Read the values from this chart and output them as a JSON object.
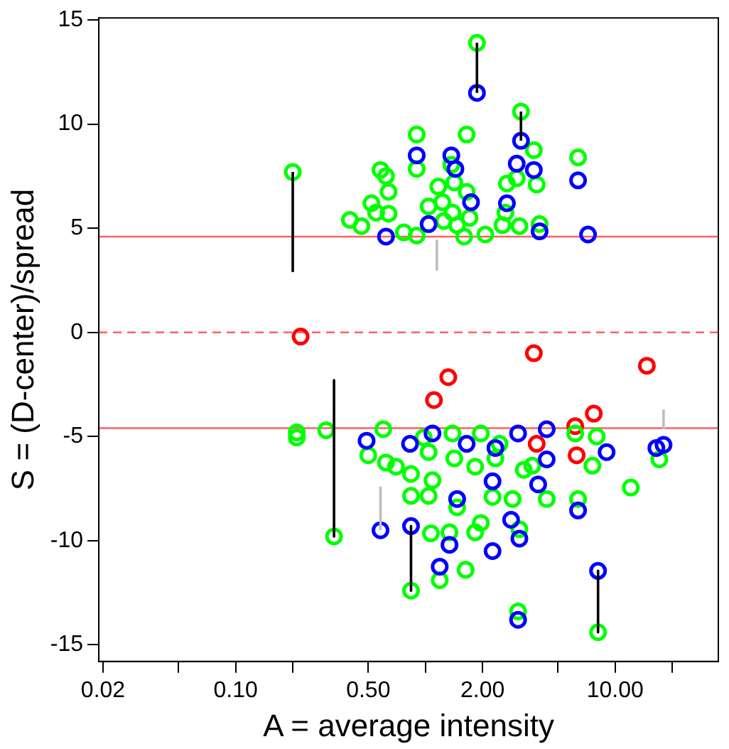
{
  "chart_data": {
    "type": "scatter",
    "xlabel": "A = average intensity",
    "ylabel": "S = (D-center)/spread",
    "log": "x",
    "marker": "circle",
    "grid": false,
    "xlim": [
      0.019,
      35
    ],
    "ylim": [
      -15.8,
      15.1
    ],
    "xticks": [
      {
        "value": 0.02,
        "label": "0.02"
      },
      {
        "value": 0.05,
        "label": null
      },
      {
        "value": 0.1,
        "label": "0.10"
      },
      {
        "value": 0.2,
        "label": null
      },
      {
        "value": 0.5,
        "label": "0.50"
      },
      {
        "value": 1,
        "label": null
      },
      {
        "value": 2,
        "label": "2.00"
      },
      {
        "value": 5,
        "label": null
      },
      {
        "value": 10,
        "label": "10.00"
      },
      {
        "value": 20,
        "label": null
      }
    ],
    "yticks": [
      -15,
      -10,
      -5,
      0,
      5,
      10,
      15
    ],
    "ref_lines": [
      {
        "axis": "y",
        "value": 4.6,
        "color": "#ff6060",
        "line_style": "solid"
      },
      {
        "axis": "y",
        "value": 0,
        "color": "#ff6060",
        "line_style": "dashed"
      },
      {
        "axis": "y",
        "value": -4.6,
        "color": "#ff6060",
        "line_style": "solid"
      }
    ],
    "series": [
      {
        "type": "line",
        "marker": "none",
        "color": "#000000",
        "x": [
          0.2,
          0.2
        ],
        "values": [
          2.9,
          7.7
        ]
      },
      {
        "type": "line",
        "marker": "none",
        "color": "#000000",
        "x": [
          1.87,
          1.87
        ],
        "values": [
          11.5,
          13.9
        ]
      },
      {
        "type": "line",
        "marker": "none",
        "color": "#000000",
        "x": [
          0.33,
          0.33
        ],
        "values": [
          -2.3,
          -9.8
        ]
      },
      {
        "type": "line",
        "marker": "none",
        "color": "#000000",
        "x": [
          0.84,
          0.84
        ],
        "values": [
          -9.3,
          -12.4
        ]
      },
      {
        "type": "line",
        "marker": "none",
        "color": "#000000",
        "x": [
          8.13,
          8.13
        ],
        "values": [
          -11.45,
          -14.4
        ]
      },
      {
        "type": "line",
        "marker": "none",
        "color": "#000000",
        "x": [
          3.19,
          3.19
        ],
        "values": [
          9.2,
          10.6
        ]
      },
      {
        "type": "line",
        "marker": "none",
        "color": "#bebebe",
        "x": [
          1.15,
          1.15
        ],
        "values": [
          4.4,
          3.0
        ]
      },
      {
        "type": "line",
        "marker": "none",
        "color": "#bebebe",
        "x": [
          0.58,
          0.58
        ],
        "values": [
          -9.5,
          -7.4
        ]
      },
      {
        "type": "line",
        "marker": "none",
        "color": "#bebebe",
        "x": [
          18.0,
          18.0
        ],
        "values": [
          -4.65,
          -3.7
        ]
      },
      {
        "color": "#0000ff",
        "x": [
          1.87,
          3.19,
          3.03,
          3.73,
          0.9,
          1.37,
          1.44,
          6.38,
          7.2,
          2.69,
          0.62,
          1.04,
          1.74,
          4.0,
          0.49,
          0.83,
          1.09,
          1.65,
          2.34,
          3.08,
          4.36,
          9.02,
          18.0,
          16.5,
          4.36,
          2.26,
          3.93,
          0.58,
          0.84,
          1.34,
          1.19,
          2.26,
          2.83,
          3.13,
          3.08,
          8.13,
          6.38,
          1.47
        ],
        "values": [
          11.5,
          9.2,
          8.1,
          7.8,
          8.5,
          8.5,
          7.85,
          7.3,
          4.7,
          6.2,
          4.6,
          5.2,
          6.25,
          4.85,
          -5.2,
          -5.35,
          -4.85,
          -5.35,
          -5.55,
          -4.85,
          -4.65,
          -5.75,
          -5.4,
          -5.55,
          -6.1,
          -7.15,
          -7.3,
          -9.5,
          -9.3,
          -10.2,
          -11.25,
          -10.5,
          -9.0,
          -9.9,
          -13.8,
          -11.45,
          -8.55,
          -8.0
        ]
      },
      {
        "color": "#00ff00",
        "x": [
          0.2,
          1.87,
          0.9,
          1.65,
          3.19,
          3.73,
          6.38,
          0.58,
          0.62,
          0.64,
          0.52,
          0.55,
          0.64,
          0.4,
          0.46,
          0.77,
          0.9,
          0.9,
          1.17,
          1.37,
          1.42,
          1.65,
          1.04,
          1.23,
          1.39,
          1.25,
          1.47,
          1.71,
          1.6,
          2.07,
          2.69,
          3.03,
          3.86,
          2.64,
          2.55,
          3.13,
          4.0,
          0.21,
          0.21,
          0.3,
          0.6,
          0.5,
          0.62,
          0.7,
          0.84,
          1.09,
          0.98,
          1.04,
          1.42,
          1.83,
          1.39,
          1.96,
          2.46,
          2.34,
          3.3,
          3.66,
          6.16,
          7.59,
          8.0,
          17.1,
          12.1,
          0.33,
          0.84,
          1.04,
          1.47,
          1.07,
          1.34,
          1.96,
          1.83,
          0.84,
          1.19,
          1.63,
          3.08,
          8.13,
          6.38,
          4.36,
          2.88,
          2.26,
          3.13
        ],
        "values": [
          7.7,
          13.9,
          9.5,
          9.5,
          10.6,
          8.75,
          8.4,
          7.8,
          7.5,
          6.75,
          6.2,
          5.75,
          5.7,
          5.4,
          5.1,
          4.8,
          4.65,
          7.85,
          7.0,
          8.05,
          7.2,
          6.75,
          6.05,
          6.25,
          5.75,
          5.35,
          5.15,
          5.5,
          4.6,
          4.7,
          7.15,
          7.4,
          7.1,
          5.75,
          5.15,
          5.1,
          5.2,
          -4.8,
          -5.05,
          -4.7,
          -4.65,
          -5.9,
          -6.25,
          -6.45,
          -6.8,
          -7.1,
          -5.05,
          -5.75,
          -6.05,
          -6.45,
          -4.85,
          -4.85,
          -5.35,
          -6.05,
          -6.6,
          -6.4,
          -4.85,
          -6.4,
          -5.0,
          -6.1,
          -7.45,
          -9.8,
          -7.85,
          -7.85,
          -8.4,
          -9.65,
          -9.6,
          -9.15,
          -9.6,
          -12.4,
          -11.9,
          -11.4,
          -13.4,
          -14.4,
          -8.0,
          -8.0,
          -8.0,
          -7.9,
          -9.45
        ]
      },
      {
        "color": "#ff0000",
        "x": [
          0.22,
          1.32,
          1.11,
          3.73,
          14.7,
          7.72,
          6.16,
          3.86,
          6.27
        ],
        "values": [
          -0.2,
          -2.15,
          -3.25,
          -1.0,
          -1.6,
          -3.9,
          -4.5,
          -5.35,
          -5.9
        ]
      }
    ]
  }
}
